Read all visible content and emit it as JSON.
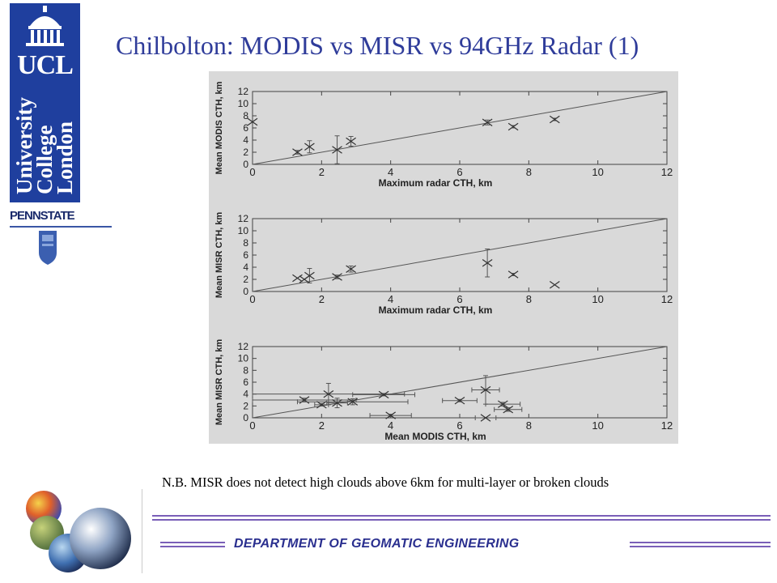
{
  "logo": {
    "ucl_letters": "UCL",
    "ucl_words": [
      "University",
      "College",
      "London"
    ],
    "pennstate": "PENNSTATE"
  },
  "title": "Chilbolton: MODIS vs MISR vs 94GHz Radar (1)",
  "note": "N.B. MISR does not detect high clouds above 6km for multi-layer or broken clouds",
  "footer": {
    "department": "DEPARTMENT  OF GEOMATIC  ENGINEERING"
  },
  "chart_data": [
    {
      "type": "scatter",
      "xlabel": "Maximum radar CTH, km",
      "ylabel": "Mean MODIS CTH, km",
      "xlim": [
        0,
        12
      ],
      "ylim": [
        0,
        12
      ],
      "x_ticks": [
        "0",
        "2",
        "4",
        "6",
        "8",
        "10",
        "12"
      ],
      "y_ticks": [
        "0",
        "2",
        "4",
        "6",
        "8",
        "10",
        "12"
      ],
      "reference_line": "y = x",
      "points": [
        {
          "x": 0.0,
          "y": 7.0,
          "yerr": 0
        },
        {
          "x": 1.3,
          "y": 2.0,
          "yerr": 0.3
        },
        {
          "x": 1.65,
          "y": 2.9,
          "yerr": 1.0
        },
        {
          "x": 2.45,
          "y": 2.4,
          "yerr": 2.3
        },
        {
          "x": 2.85,
          "y": 3.8,
          "yerr": 0.8
        },
        {
          "x": 6.8,
          "y": 6.9,
          "yerr": 0.4
        },
        {
          "x": 7.55,
          "y": 6.2,
          "yerr": 0.2
        },
        {
          "x": 8.75,
          "y": 7.4,
          "yerr": 0.2
        }
      ]
    },
    {
      "type": "scatter",
      "xlabel": "Maximum radar CTH, km",
      "ylabel": "Mean MISR CTH, km",
      "xlim": [
        0,
        12
      ],
      "ylim": [
        0,
        12
      ],
      "x_ticks": [
        "0",
        "2",
        "4",
        "6",
        "8",
        "10",
        "12"
      ],
      "y_ticks": [
        "0",
        "2",
        "4",
        "6",
        "8",
        "10",
        "12"
      ],
      "reference_line": "y = x",
      "points": [
        {
          "x": 1.3,
          "y": 2.2,
          "yerr": 0
        },
        {
          "x": 1.5,
          "y": 2.0,
          "yerr": 0
        },
        {
          "x": 1.65,
          "y": 2.6,
          "yerr": 1.2
        },
        {
          "x": 2.45,
          "y": 2.4,
          "yerr": 0.3
        },
        {
          "x": 2.85,
          "y": 3.7,
          "yerr": 0.5
        },
        {
          "x": 6.8,
          "y": 4.7,
          "yerr": 2.3
        },
        {
          "x": 7.55,
          "y": 2.8,
          "yerr": 0.2
        },
        {
          "x": 8.75,
          "y": 1.1,
          "yerr": 0
        }
      ]
    },
    {
      "type": "scatter",
      "xlabel": "Mean MODIS CTH, km",
      "ylabel": "Mean MISR CTH, km",
      "xlim": [
        0,
        12
      ],
      "ylim": [
        0,
        12
      ],
      "x_ticks": [
        "0",
        "2",
        "4",
        "6",
        "8",
        "10",
        "12"
      ],
      "y_ticks": [
        "0",
        "2",
        "4",
        "6",
        "8",
        "10",
        "12"
      ],
      "reference_line": "y = x",
      "points": [
        {
          "x": 1.5,
          "y": 3.0,
          "xerr": 1.5,
          "yerr": 0.3
        },
        {
          "x": 2.0,
          "y": 2.2,
          "xerr": 0.2,
          "yerr": 0.2
        },
        {
          "x": 2.2,
          "y": 4.0,
          "xerr": 2.2,
          "yerr": 1.8
        },
        {
          "x": 2.45,
          "y": 2.5,
          "xerr": 0.3,
          "yerr": 0.8
        },
        {
          "x": 2.9,
          "y": 2.7,
          "xerr": 1.6,
          "yerr": 0.5
        },
        {
          "x": 3.8,
          "y": 3.9,
          "xerr": 0.9,
          "yerr": 0.2
        },
        {
          "x": 4.0,
          "y": 0.4,
          "xerr": 0.6,
          "yerr": 0.2
        },
        {
          "x": 6.0,
          "y": 2.9,
          "xerr": 0.5,
          "yerr": 0.2
        },
        {
          "x": 6.75,
          "y": 4.7,
          "xerr": 0.4,
          "yerr": 2.4
        },
        {
          "x": 6.75,
          "y": 0.0,
          "xerr": 0.3,
          "yerr": 0
        },
        {
          "x": 7.25,
          "y": 2.3,
          "xerr": 0.5,
          "yerr": 0.3
        },
        {
          "x": 7.4,
          "y": 1.4,
          "xerr": 0.4,
          "yerr": 0.3
        }
      ]
    }
  ]
}
